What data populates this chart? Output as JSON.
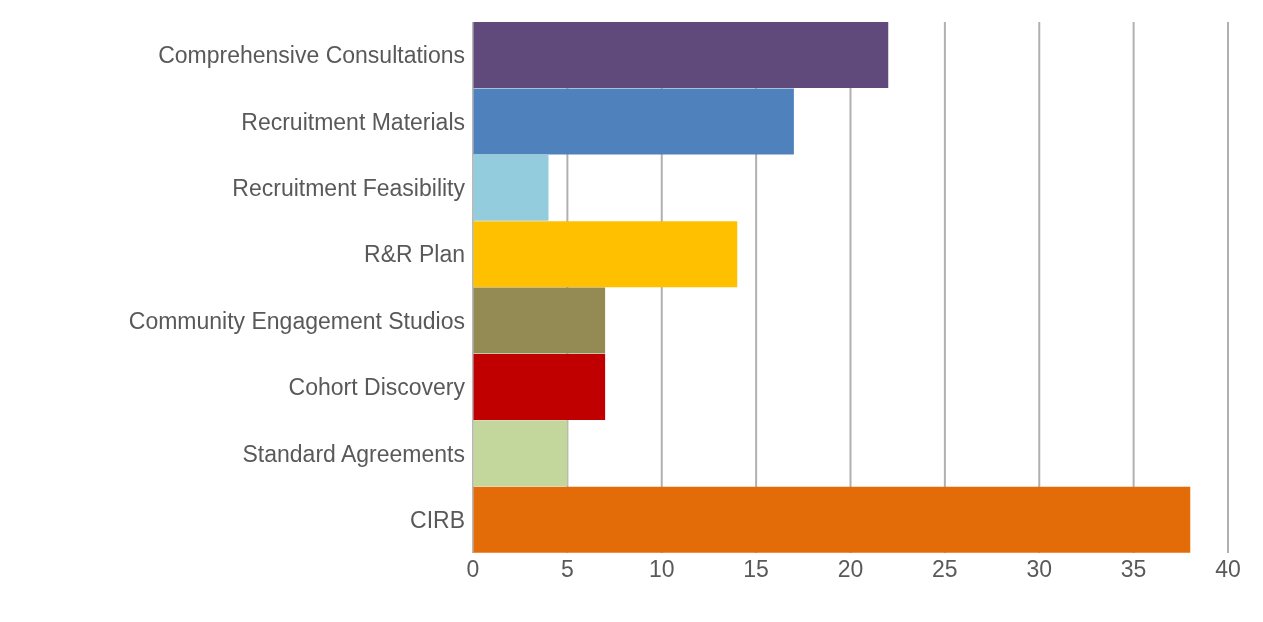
{
  "chart_data": {
    "type": "bar",
    "orientation": "horizontal",
    "categories": [
      "Comprehensive Consultations",
      "Recruitment Materials",
      "Recruitment Feasibility",
      "R&R Plan",
      "Community Engagement Studios",
      "Cohort Discovery",
      "Standard Agreements",
      "CIRB"
    ],
    "values": [
      22,
      17,
      4,
      14,
      7,
      7,
      5,
      38
    ],
    "colors": [
      "#604a7b",
      "#4f81bd",
      "#93cddd",
      "#ffc000",
      "#948a54",
      "#c00000",
      "#c3d69b",
      "#e36c09"
    ],
    "xlim": [
      0,
      40
    ],
    "xticks": [
      0,
      5,
      10,
      15,
      20,
      25,
      30,
      35,
      40
    ],
    "grid": "x",
    "legend": false
  }
}
